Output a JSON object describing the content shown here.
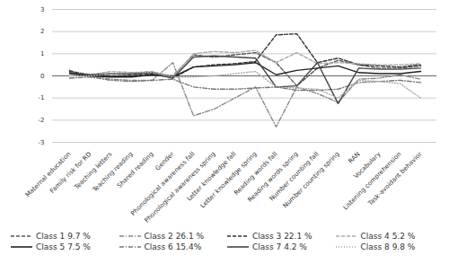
{
  "chart_data": {
    "type": "line",
    "categories": [
      "Maternal education",
      "Family risk for RD",
      "Teaching letters",
      "Teaching reading",
      "Shared reading",
      "Gender",
      "Phonological awareness fall",
      "Phonological awareness spring",
      "Letter knowledge fall",
      "Letter knowledge spring",
      "Reading words fall",
      "Reading words spring",
      "Number counting fall",
      "Number counting spring",
      "RAN",
      "Vocabulary",
      "Listening comprehension",
      "Task-avoidant behavior"
    ],
    "series": [
      {
        "name": "Class 1 9.7 %",
        "color": "#555555",
        "line_style": "dashed",
        "values": [
          0.25,
          -0.05,
          0.1,
          0.05,
          0.15,
          0.0,
          0.95,
          0.85,
          0.95,
          1.05,
          0.6,
          -0.45,
          0.35,
          0.7,
          0.5,
          0.35,
          0.35,
          0.45
        ]
      },
      {
        "name": "Class 2 26.1 %",
        "color": "#888888",
        "line_style": "dashdot",
        "values": [
          0.1,
          0.0,
          -0.15,
          -0.2,
          -0.2,
          0.6,
          -1.8,
          -1.5,
          -1.0,
          -0.5,
          -2.3,
          -0.5,
          -0.8,
          -1.2,
          -0.15,
          -0.1,
          0.05,
          -0.15
        ]
      },
      {
        "name": "Class 3 22.1 %",
        "color": "#333333",
        "line_style": "dashed",
        "values": [
          0.2,
          0.05,
          0.0,
          0.0,
          0.1,
          -0.1,
          0.4,
          0.5,
          0.55,
          0.65,
          1.85,
          1.9,
          0.6,
          0.8,
          0.5,
          0.45,
          0.4,
          0.5
        ]
      },
      {
        "name": "Class 4 5.2 %",
        "color": "#aaaaaa",
        "line_style": "dashed",
        "values": [
          0.15,
          0.05,
          0.2,
          0.15,
          0.2,
          -0.05,
          1.0,
          1.1,
          1.05,
          1.15,
          0.6,
          1.05,
          0.55,
          0.6,
          0.55,
          0.5,
          0.5,
          0.55
        ]
      },
      {
        "name": "Class 5 7.5 %",
        "color": "#222222",
        "line_style": "solid",
        "values": [
          0.1,
          0.0,
          -0.05,
          -0.05,
          0.05,
          -0.05,
          0.4,
          0.45,
          0.5,
          0.6,
          0.05,
          0.25,
          0.35,
          0.45,
          0.15,
          0.1,
          0.1,
          0.2
        ]
      },
      {
        "name": "Class 6 15.4%",
        "color": "#777777",
        "line_style": "dashdot",
        "values": [
          -0.1,
          -0.05,
          -0.2,
          -0.25,
          -0.2,
          -0.15,
          -0.5,
          -0.6,
          -0.6,
          -0.55,
          -0.5,
          -0.65,
          -0.65,
          -0.6,
          -0.3,
          -0.25,
          -0.2,
          -0.3
        ]
      },
      {
        "name": "Class 7 4.2 %",
        "color": "#444444",
        "line_style": "solid",
        "values": [
          0.15,
          0.05,
          0.1,
          0.1,
          0.15,
          -0.1,
          0.85,
          0.9,
          0.85,
          0.8,
          -0.5,
          -0.45,
          0.6,
          -1.25,
          0.35,
          0.3,
          0.3,
          0.35
        ]
      },
      {
        "name": "Class 8 9.8 %",
        "color": "#aaaaaa",
        "line_style": "dotted",
        "values": [
          0.0,
          0.0,
          0.1,
          0.15,
          0.15,
          -0.05,
          -0.05,
          0.0,
          0.1,
          0.2,
          -0.5,
          -0.55,
          -0.6,
          -1.0,
          -0.2,
          -0.25,
          -0.35,
          -1.0
        ]
      }
    ],
    "ylim": [
      -3,
      3
    ],
    "yticks": [
      -3,
      -2,
      -1,
      0,
      1,
      2,
      3
    ],
    "grid": true,
    "legend": "bottom"
  }
}
